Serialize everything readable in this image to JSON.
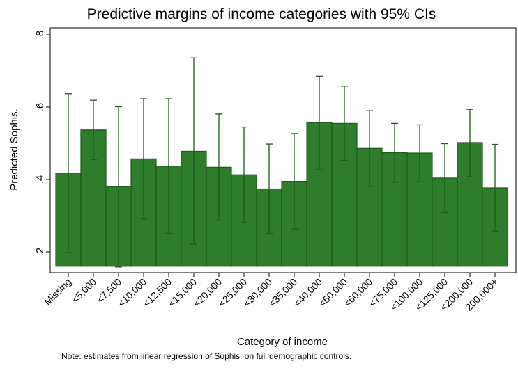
{
  "chart_data": {
    "type": "bar",
    "title": "Predictive margins of income categories with 95% CIs",
    "xlabel": "Category of income",
    "ylabel": "Predicted Sophis.",
    "note": "Note: estimates from linear regression of Sophis. on full demographic controls.",
    "bar_base": 0.16,
    "ylim": [
      0.16,
      0.86
    ],
    "yticks": [
      0.2,
      0.4,
      0.6,
      0.8
    ],
    "ytick_labels": [
      ".2",
      ".4",
      ".6",
      ".8"
    ],
    "grid": false,
    "categories": [
      "Missing",
      "<5,000",
      "<7,500",
      "<10,000",
      "<12,500",
      "<15,000",
      "<20,000",
      "<25,000",
      "<30,000",
      "<35,000",
      "<40,000",
      "<50,000",
      "<60,000",
      "<75,000",
      "<100,000",
      "<125,000",
      "<200,000",
      "200,000+"
    ],
    "values": [
      0.418,
      0.537,
      0.38,
      0.457,
      0.437,
      0.478,
      0.434,
      0.413,
      0.374,
      0.395,
      0.557,
      0.555,
      0.486,
      0.474,
      0.473,
      0.404,
      0.502,
      0.377
    ],
    "ci_lower": [
      0.198,
      0.455,
      0.158,
      0.291,
      0.251,
      0.221,
      0.286,
      0.281,
      0.251,
      0.263,
      0.427,
      0.453,
      0.381,
      0.392,
      0.394,
      0.309,
      0.408,
      0.257
    ],
    "ci_upper": [
      0.637,
      0.619,
      0.601,
      0.623,
      0.623,
      0.736,
      0.581,
      0.545,
      0.498,
      0.527,
      0.686,
      0.658,
      0.59,
      0.555,
      0.551,
      0.499,
      0.594,
      0.497
    ],
    "bar_color": "#2e7d2b",
    "bar_edge_color": "#1f5a1c",
    "errorbar_color": "#1f5a1c"
  }
}
